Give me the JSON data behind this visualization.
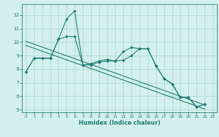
{
  "xlabel": "Humidex (Indice chaleur)",
  "bg_color": "#d4f0ec",
  "grid_color": "#a8d8d0",
  "line_color": "#1a7a6e",
  "xlim": [
    -0.5,
    23.5
  ],
  "ylim": [
    4.8,
    12.8
  ],
  "yticks": [
    5,
    6,
    7,
    8,
    9,
    10,
    11,
    12
  ],
  "xticks": [
    0,
    1,
    2,
    3,
    4,
    5,
    6,
    7,
    8,
    9,
    10,
    11,
    12,
    13,
    14,
    15,
    16,
    17,
    18,
    19,
    20,
    21,
    22,
    23
  ],
  "series": [
    {
      "x": [
        0,
        1,
        2,
        3,
        4,
        5,
        6,
        7,
        8,
        9,
        10,
        11,
        12,
        13,
        14,
        15,
        16,
        17,
        18,
        19,
        20,
        21,
        22
      ],
      "y": [
        7.8,
        8.8,
        8.8,
        8.8,
        10.2,
        11.7,
        12.3,
        8.3,
        8.3,
        8.5,
        8.6,
        8.6,
        9.3,
        9.6,
        9.5,
        9.5,
        8.25,
        7.3,
        6.9,
        5.9,
        5.9,
        5.2,
        5.4
      ],
      "marker": true
    },
    {
      "x": [
        0,
        1,
        2,
        3,
        4,
        5,
        6,
        7,
        8,
        9,
        10,
        11,
        12,
        13,
        14,
        15,
        16,
        17,
        18,
        19,
        20,
        21,
        22
      ],
      "y": [
        7.8,
        8.8,
        8.8,
        8.8,
        10.2,
        10.4,
        10.4,
        8.3,
        8.4,
        8.6,
        8.7,
        8.6,
        8.65,
        9.0,
        9.5,
        9.5,
        8.25,
        7.3,
        6.9,
        5.9,
        5.9,
        5.2,
        5.4
      ],
      "marker": true
    },
    {
      "x": [
        0,
        22
      ],
      "y": [
        10.05,
        5.35
      ],
      "marker": false
    },
    {
      "x": [
        0,
        22
      ],
      "y": [
        9.75,
        5.05
      ],
      "marker": false
    }
  ]
}
